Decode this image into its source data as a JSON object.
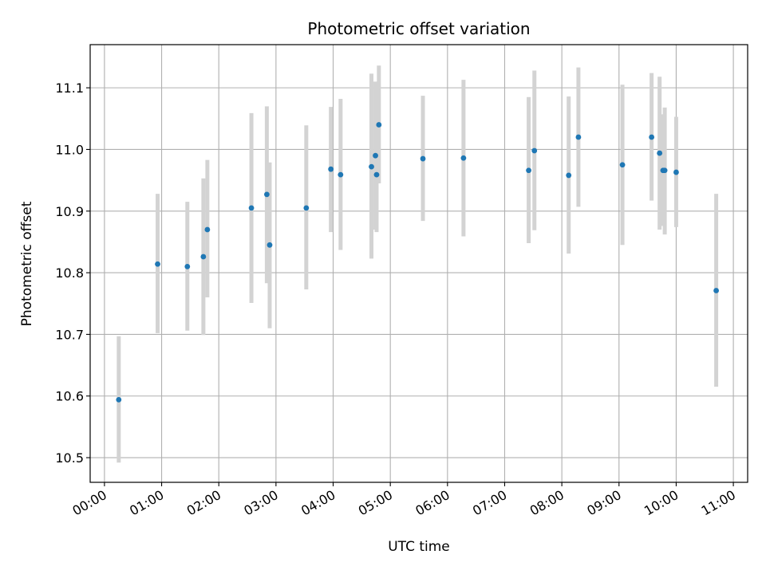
{
  "chart_data": {
    "type": "scatter",
    "title": "Photometric offset variation",
    "xlabel": "UTC time",
    "ylabel": "Photometric offset",
    "xlim": [
      -0.25,
      11.25
    ],
    "ylim": [
      10.46,
      11.17
    ],
    "grid": true,
    "xticks": [
      {
        "value": 0,
        "label": "00:00"
      },
      {
        "value": 1,
        "label": "01:00"
      },
      {
        "value": 2,
        "label": "02:00"
      },
      {
        "value": 3,
        "label": "03:00"
      },
      {
        "value": 4,
        "label": "04:00"
      },
      {
        "value": 5,
        "label": "05:00"
      },
      {
        "value": 6,
        "label": "06:00"
      },
      {
        "value": 7,
        "label": "07:00"
      },
      {
        "value": 8,
        "label": "08:00"
      },
      {
        "value": 9,
        "label": "09:00"
      },
      {
        "value": 10,
        "label": "10:00"
      },
      {
        "value": 11,
        "label": "11:00"
      }
    ],
    "yticks": [
      {
        "value": 10.5,
        "label": "10.5"
      },
      {
        "value": 10.6,
        "label": "10.6"
      },
      {
        "value": 10.7,
        "label": "10.7"
      },
      {
        "value": 10.8,
        "label": "10.8"
      },
      {
        "value": 10.9,
        "label": "10.9"
      },
      {
        "value": 11.0,
        "label": "11.0"
      },
      {
        "value": 11.1,
        "label": "11.1"
      }
    ],
    "colors": {
      "point": "#1f77b4",
      "errorbar": "#d3d3d3",
      "grid": "#b0b0b0"
    },
    "points": [
      {
        "x": 0.25,
        "y": 10.594,
        "ylo": 10.492,
        "yhi": 10.697
      },
      {
        "x": 0.93,
        "y": 10.814,
        "ylo": 10.702,
        "yhi": 10.928
      },
      {
        "x": 1.45,
        "y": 10.81,
        "ylo": 10.706,
        "yhi": 10.915
      },
      {
        "x": 1.73,
        "y": 10.826,
        "ylo": 10.699,
        "yhi": 10.953
      },
      {
        "x": 1.8,
        "y": 10.87,
        "ylo": 10.76,
        "yhi": 10.983
      },
      {
        "x": 2.57,
        "y": 10.905,
        "ylo": 10.751,
        "yhi": 11.059
      },
      {
        "x": 2.84,
        "y": 10.927,
        "ylo": 10.783,
        "yhi": 11.07
      },
      {
        "x": 2.89,
        "y": 10.845,
        "ylo": 10.71,
        "yhi": 10.979
      },
      {
        "x": 3.53,
        "y": 10.905,
        "ylo": 10.773,
        "yhi": 11.039
      },
      {
        "x": 3.96,
        "y": 10.968,
        "ylo": 10.866,
        "yhi": 11.069
      },
      {
        "x": 4.13,
        "y": 10.959,
        "ylo": 10.837,
        "yhi": 11.082
      },
      {
        "x": 4.67,
        "y": 10.972,
        "ylo": 10.823,
        "yhi": 11.123
      },
      {
        "x": 4.74,
        "y": 10.99,
        "ylo": 10.87,
        "yhi": 11.11
      },
      {
        "x": 4.76,
        "y": 10.959,
        "ylo": 10.866,
        "yhi": 11.06
      },
      {
        "x": 4.8,
        "y": 11.04,
        "ylo": 10.945,
        "yhi": 11.136
      },
      {
        "x": 5.57,
        "y": 10.985,
        "ylo": 10.884,
        "yhi": 11.087
      },
      {
        "x": 6.28,
        "y": 10.986,
        "ylo": 10.859,
        "yhi": 11.113
      },
      {
        "x": 7.42,
        "y": 10.966,
        "ylo": 10.848,
        "yhi": 11.085
      },
      {
        "x": 7.52,
        "y": 10.998,
        "ylo": 10.869,
        "yhi": 11.128
      },
      {
        "x": 8.12,
        "y": 10.958,
        "ylo": 10.831,
        "yhi": 11.086
      },
      {
        "x": 8.29,
        "y": 11.02,
        "ylo": 10.907,
        "yhi": 11.133
      },
      {
        "x": 9.06,
        "y": 10.975,
        "ylo": 10.845,
        "yhi": 11.105
      },
      {
        "x": 9.57,
        "y": 11.02,
        "ylo": 10.917,
        "yhi": 11.124
      },
      {
        "x": 9.71,
        "y": 10.994,
        "ylo": 10.87,
        "yhi": 11.118
      },
      {
        "x": 9.77,
        "y": 10.966,
        "ylo": 10.876,
        "yhi": 11.057
      },
      {
        "x": 9.8,
        "y": 10.966,
        "ylo": 10.862,
        "yhi": 11.068
      },
      {
        "x": 10.0,
        "y": 10.963,
        "ylo": 10.874,
        "yhi": 11.053
      },
      {
        "x": 10.7,
        "y": 10.771,
        "ylo": 10.615,
        "yhi": 10.928
      }
    ]
  }
}
